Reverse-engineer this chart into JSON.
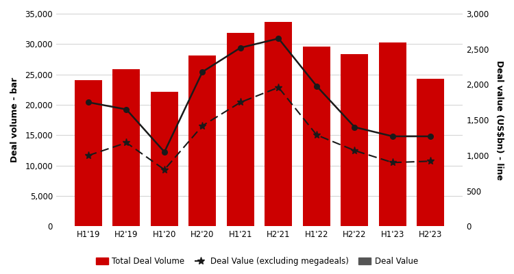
{
  "categories": [
    "H1'19",
    "H2'19",
    "H1'20",
    "H2'20",
    "H1'21",
    "H2'21",
    "H1'22",
    "H2'22",
    "H1'23",
    "H2'23"
  ],
  "bar_values": [
    24100,
    25900,
    22200,
    28100,
    31800,
    33700,
    29600,
    28300,
    30300,
    24300
  ],
  "deal_value": [
    1750,
    1650,
    1050,
    2180,
    2520,
    2650,
    1980,
    1400,
    1270,
    1270
  ],
  "deal_value_ex_mega": [
    1000,
    1180,
    800,
    1420,
    1750,
    1960,
    1290,
    1070,
    900,
    920
  ],
  "bar_color": "#CC0000",
  "line_solid_color": "#1a1a1a",
  "line_dashed_color": "#1a1a1a",
  "ylabel_left": "Deal volume - bar",
  "ylabel_right": "Deal value (US$bn) - line",
  "ylim_left": [
    0,
    35000
  ],
  "ylim_right": [
    0,
    3000
  ],
  "yticks_left": [
    0,
    5000,
    10000,
    15000,
    20000,
    25000,
    30000,
    35000
  ],
  "yticks_right": [
    0,
    500,
    1000,
    1500,
    2000,
    2500,
    3000
  ],
  "legend_labels": [
    "Total Deal Volume",
    "Deal Value (excluding megadeals)",
    "Deal Value"
  ],
  "background_color": "#ffffff",
  "grid_color": "#d0d0d0",
  "bar_color_legend": "#CC0000",
  "deal_value_legend_color": "#555555"
}
